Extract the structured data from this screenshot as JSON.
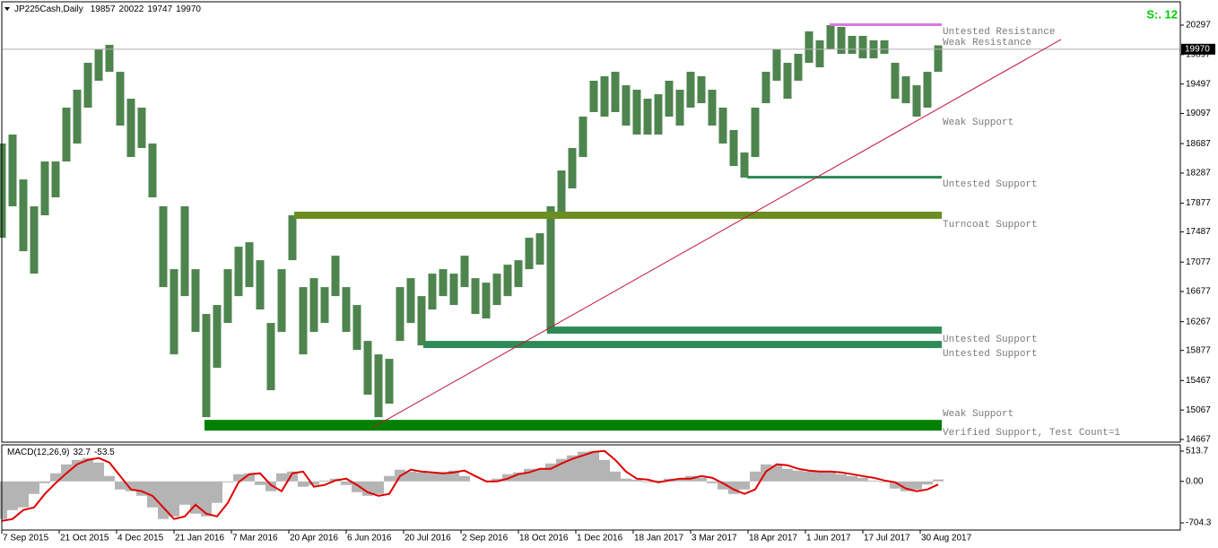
{
  "chart_data": [
    {
      "type": "ohlc",
      "symbol": "JP225Cash,Daily",
      "ohlc": [
        19857,
        20022,
        19747,
        19970
      ],
      "badge": "S:. 12",
      "color": "#2f6e2f",
      "x": [
        0,
        6,
        12,
        18,
        24,
        30,
        36,
        42,
        48,
        54,
        60,
        66,
        72,
        78,
        84,
        90,
        96,
        102,
        108,
        114,
        120,
        126,
        132,
        138,
        144,
        150,
        156,
        162,
        168,
        174,
        180,
        186,
        192,
        198,
        204,
        210,
        216,
        222,
        228,
        234,
        240,
        246,
        252,
        258,
        264,
        270,
        276,
        282,
        288,
        294,
        300,
        306,
        312,
        318,
        324,
        330,
        336,
        342,
        348,
        354,
        360,
        366,
        372,
        378,
        384,
        390,
        396,
        402,
        408,
        414,
        420,
        426,
        432,
        438,
        444,
        450,
        456,
        462,
        468,
        474,
        480,
        486,
        492,
        498,
        504,
        510,
        516,
        522
      ],
      "high": [
        18688,
        18810,
        18200,
        17835,
        18444,
        18444,
        19176,
        19419,
        19785,
        19968,
        20029,
        19663,
        19297,
        19176,
        18688,
        17835,
        16981,
        17835,
        16981,
        16372,
        16494,
        16981,
        17286,
        17347,
        17103,
        16250,
        16981,
        17713,
        16737,
        16859,
        16737,
        17164,
        16737,
        16494,
        16006,
        15823,
        15762,
        16737,
        16859,
        16615,
        16920,
        16981,
        16920,
        17164,
        16859,
        16798,
        16920,
        17042,
        17103,
        17408,
        17469,
        17835,
        18322,
        18627,
        19054,
        19541,
        19602,
        19663,
        19480,
        19419,
        19297,
        19358,
        19541,
        19419,
        19663,
        19602,
        19419,
        19176,
        18871,
        18566,
        19176,
        19663,
        19968,
        19785,
        19907,
        20212,
        20090,
        20297,
        20273,
        20151,
        20151,
        20090,
        20090,
        19785,
        19602,
        19480,
        19663,
        20022
      ],
      "low": [
        17408,
        17835,
        17225,
        16920,
        17713,
        17957,
        18444,
        18688,
        19176,
        19541,
        19663,
        18932,
        18505,
        18627,
        17957,
        16737,
        15823,
        16615,
        16128,
        14970,
        15640,
        16250,
        16615,
        16737,
        16433,
        15336,
        16128,
        17103,
        15823,
        16128,
        16250,
        16615,
        16128,
        15884,
        15275,
        14970,
        15153,
        16006,
        16250,
        15945,
        16433,
        16615,
        16494,
        16737,
        16372,
        16311,
        16494,
        16615,
        16737,
        16981,
        17042,
        16128,
        17713,
        18078,
        18505,
        19115,
        19054,
        19115,
        18932,
        18810,
        18810,
        18810,
        19054,
        18932,
        19176,
        19236,
        18932,
        18688,
        18383,
        18225,
        18505,
        19236,
        19541,
        19297,
        19541,
        19785,
        19724,
        19968,
        19907,
        19907,
        19846,
        19846,
        19907,
        19297,
        19236,
        19054,
        19176,
        19663
      ],
      "xlim": [
        0,
        657
      ],
      "xticks": [
        {
          "value": 0,
          "label": "7 Sep 2015"
        },
        {
          "value": 32,
          "label": "21 Oct 2015"
        },
        {
          "value": 64,
          "label": "4 Dec 2015"
        },
        {
          "value": 96,
          "label": "21 Jan 2016"
        },
        {
          "value": 128,
          "label": "7 Mar 2016"
        },
        {
          "value": 160,
          "label": "20 Apr 2016"
        },
        {
          "value": 192,
          "label": "6 Jun 2016"
        },
        {
          "value": 224,
          "label": "20 Jul 2016"
        },
        {
          "value": 256,
          "label": "2 Sep 2016"
        },
        {
          "value": 288,
          "label": "18 Oct 2016"
        },
        {
          "value": 320,
          "label": "1 Dec 2016"
        },
        {
          "value": 352,
          "label": "18 Jan 2017"
        },
        {
          "value": 384,
          "label": "3 Mar 2017"
        },
        {
          "value": 416,
          "label": "18 Apr 2017"
        },
        {
          "value": 448,
          "label": "1 Jun 2017"
        },
        {
          "value": 480,
          "label": "17 Jul 2017"
        },
        {
          "value": 512,
          "label": "30 Aug 2017"
        }
      ],
      "ylim": [
        14630,
        20614
      ],
      "yticks": [
        20297,
        19897,
        19497,
        19097,
        18687,
        18287,
        17877,
        17487,
        17077,
        16677,
        16267,
        15877,
        15467,
        15067,
        14667
      ],
      "trendline": {
        "x": [
          206.5,
          590.5
        ],
        "y": [
          14824,
          20102
        ],
        "color": "#c0143c",
        "labels": [
          "Weak Support"
        ]
      },
      "zones": [
        {
          "from": 461.5,
          "to": 524,
          "top": 20321,
          "bottom": 20285,
          "color": "#dd77dd",
          "labels": [
            "Untested Resistance",
            "Weak Resistance"
          ]
        },
        {
          "from": 415.5,
          "to": 524,
          "top": 18249,
          "bottom": 18212,
          "color": "#2e8b57",
          "labels": [
            "Untested Support"
          ]
        },
        {
          "from": 163,
          "to": 524,
          "top": 17762,
          "bottom": 17664,
          "color": "#6b8e23",
          "labels": [
            "Turncoat Support"
          ]
        },
        {
          "from": 304,
          "to": 524,
          "top": 16201,
          "bottom": 16104,
          "color": "#2e8b57",
          "labels": [
            "Untested Support"
          ]
        },
        {
          "from": 235,
          "to": 524,
          "top": 16006,
          "bottom": 15909,
          "color": "#2e8b57",
          "labels": [
            "Untested Support"
          ]
        },
        {
          "from": 113,
          "to": 524,
          "top": 14933,
          "bottom": 14787,
          "color": "#008000",
          "labels": [
            "Weak Support",
            "Verified Support, Test Count=1"
          ]
        }
      ]
    },
    {
      "type": "macd",
      "name": "MACD(12,26,9)",
      "x": [
        0,
        6,
        12,
        18,
        24,
        30,
        36,
        42,
        48,
        54,
        60,
        66,
        72,
        78,
        84,
        90,
        96,
        102,
        108,
        114,
        120,
        126,
        132,
        138,
        144,
        150,
        156,
        162,
        168,
        174,
        180,
        186,
        192,
        198,
        204,
        210,
        216,
        222,
        228,
        234,
        240,
        246,
        252,
        258,
        264,
        270,
        276,
        282,
        288,
        294,
        300,
        306,
        312,
        318,
        324,
        330,
        336,
        342,
        348,
        354,
        360,
        366,
        372,
        378,
        384,
        390,
        396,
        402,
        408,
        414,
        420,
        426,
        432,
        438,
        444,
        450,
        456,
        462,
        468,
        474,
        480,
        486,
        492,
        498,
        504,
        510,
        516,
        522
      ],
      "histogram": {
        "color": "#b4b4b4",
        "values": [
          -639,
          -487,
          -441,
          -213,
          -30,
          137,
          289,
          365,
          396,
          320,
          91,
          -137,
          -167,
          -244,
          -441,
          -639,
          -594,
          -396,
          -548,
          -594,
          -365,
          -15,
          122,
          137,
          -61,
          -167,
          137,
          167,
          -91,
          -61,
          15,
          46,
          -61,
          -183,
          -244,
          -213,
          91,
          198,
          167,
          152,
          137,
          152,
          183,
          91,
          0,
          0,
          46,
          122,
          152,
          213,
          213,
          304,
          381,
          441,
          502,
          517,
          365,
          167,
          46,
          30,
          -15,
          15,
          46,
          46,
          91,
          61,
          -30,
          -137,
          -213,
          -137,
          167,
          289,
          274,
          213,
          183,
          167,
          167,
          152,
          122,
          91,
          61,
          15,
          -15,
          -122,
          -167,
          -137,
          -53.5,
          32.7
        ]
      },
      "signal": {
        "color": "#e00000",
        "values": [
          -670,
          -639,
          -487,
          -441,
          -213,
          -30,
          137,
          289,
          365,
          396,
          320,
          91,
          -137,
          -167,
          -244,
          -441,
          -639,
          -594,
          -396,
          -548,
          -594,
          -365,
          -15,
          122,
          137,
          -61,
          -167,
          137,
          167,
          -91,
          -61,
          15,
          46,
          -61,
          -183,
          -244,
          -213,
          91,
          198,
          167,
          152,
          137,
          152,
          183,
          91,
          0,
          0,
          46,
          122,
          152,
          213,
          213,
          304,
          381,
          441,
          502,
          517,
          365,
          167,
          46,
          30,
          -15,
          15,
          46,
          46,
          91,
          61,
          -30,
          -137,
          -213,
          -137,
          167,
          289,
          274,
          213,
          183,
          167,
          167,
          152,
          122,
          91,
          61,
          15,
          -15,
          -122,
          -167,
          -137,
          -53.5
        ]
      },
      "xlim": [
        0,
        657
      ],
      "ylim": [
        -826,
        620
      ],
      "yticks": [
        513.7,
        {
          "value": 0,
          "label": "0.00"
        },
        -704.3
      ]
    }
  ]
}
